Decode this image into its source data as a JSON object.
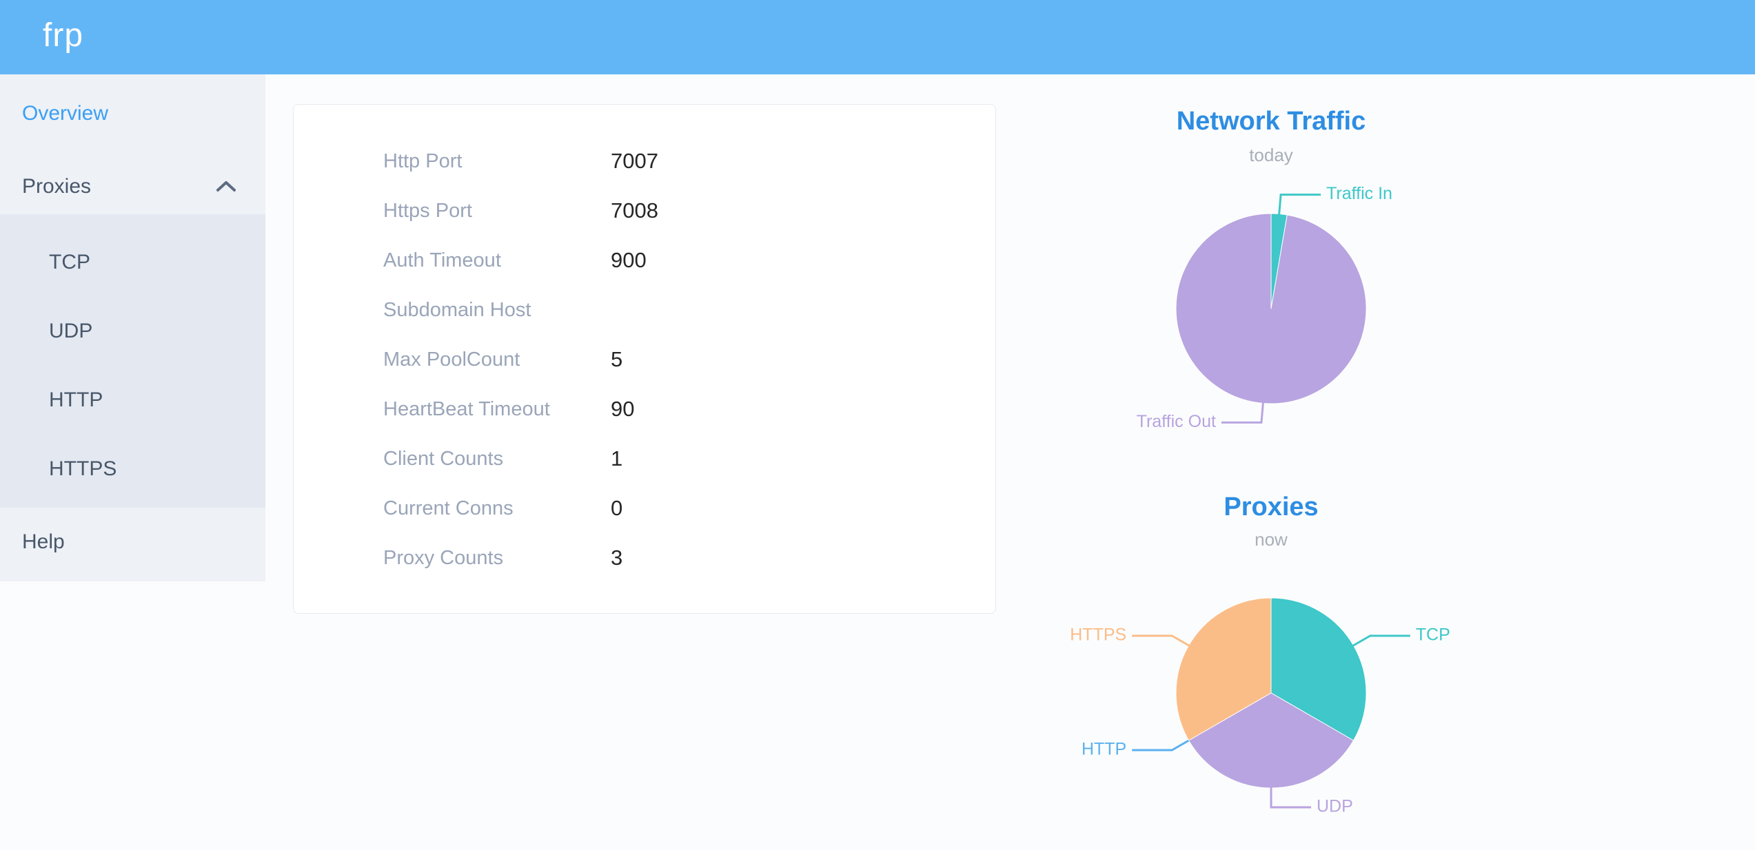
{
  "header": {
    "logo_text": "frp"
  },
  "sidebar": {
    "overview_label": "Overview",
    "proxies_label": "Proxies",
    "proxies_expanded": true,
    "proxies_children": [
      "TCP",
      "UDP",
      "HTTP",
      "HTTPS"
    ],
    "help_label": "Help",
    "active_item": "Overview"
  },
  "overview_card": {
    "rows": [
      {
        "label": "Http Port",
        "value": "7007"
      },
      {
        "label": "Https Port",
        "value": "7008"
      },
      {
        "label": "Auth Timeout",
        "value": "900"
      },
      {
        "label": "Subdomain Host",
        "value": ""
      },
      {
        "label": "Max PoolCount",
        "value": "5"
      },
      {
        "label": "HeartBeat Timeout",
        "value": "90"
      },
      {
        "label": "Client Counts",
        "value": "1"
      },
      {
        "label": "Current Conns",
        "value": "0"
      },
      {
        "label": "Proxy Counts",
        "value": "3"
      }
    ]
  },
  "chart_data": [
    {
      "type": "pie",
      "title": "Network Traffic",
      "subtitle": "today",
      "legend_position": "none",
      "labels": "outside leader-line labels colored per slice",
      "note": "no numeric labels shown; values are percent estimated from arc angles",
      "slices": [
        {
          "name": "Traffic In",
          "value": 2.7,
          "color": "#3fc7c9"
        },
        {
          "name": "Traffic Out",
          "value": 97.3,
          "color": "#b8a4e0"
        }
      ]
    },
    {
      "type": "pie",
      "title": "Proxies",
      "subtitle": "now",
      "legend_position": "none",
      "labels": "outside leader-line labels colored per slice",
      "note": "counts; HTTP slice is zero-width but its label is shown",
      "slices": [
        {
          "name": "TCP",
          "value": 1,
          "color": "#3fc7c9"
        },
        {
          "name": "UDP",
          "value": 1,
          "color": "#b8a4e0"
        },
        {
          "name": "HTTP",
          "value": 0,
          "color": "#5ab1ef"
        },
        {
          "name": "HTTPS",
          "value": 1,
          "color": "#fbbd88"
        }
      ]
    }
  ],
  "colors": {
    "header_bg": "#63b6f6",
    "sidebar_bg": "#eef1f6",
    "submenu_bg": "#e4e8f1",
    "active_menu_text": "#3a9ff5",
    "chart_title": "#2d8de2",
    "table_label": "#9aa5b8",
    "table_value": "#262626"
  }
}
